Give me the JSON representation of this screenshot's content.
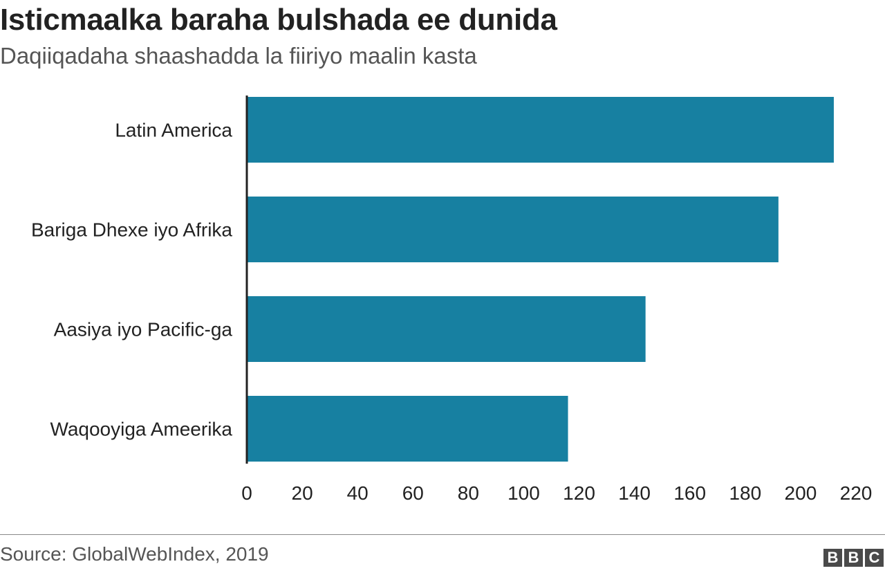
{
  "chart_data": {
    "type": "bar",
    "orientation": "horizontal",
    "title": "Isticmaalka baraha bulshada ee dunida",
    "subtitle": "Daqiiqadaha shaashadda la fiiriyo maalin kasta",
    "categories": [
      "Latin America",
      "Bariga Dhexe iyo Afrika",
      "Aasiya iyo Pacific-ga",
      "Waqooyiga Ameerika"
    ],
    "values": [
      212,
      192,
      144,
      116
    ],
    "xlim": [
      0,
      220
    ],
    "xticks": [
      "0",
      "20",
      "40",
      "60",
      "80",
      "100",
      "120",
      "140",
      "160",
      "180",
      "200",
      "220"
    ],
    "xlabel": "",
    "ylabel": "",
    "grid": false,
    "bar_color": "#1780a1"
  },
  "footer": {
    "source": "Source: GlobalWebIndex, 2019",
    "logo_letters": [
      "B",
      "B",
      "C"
    ]
  }
}
